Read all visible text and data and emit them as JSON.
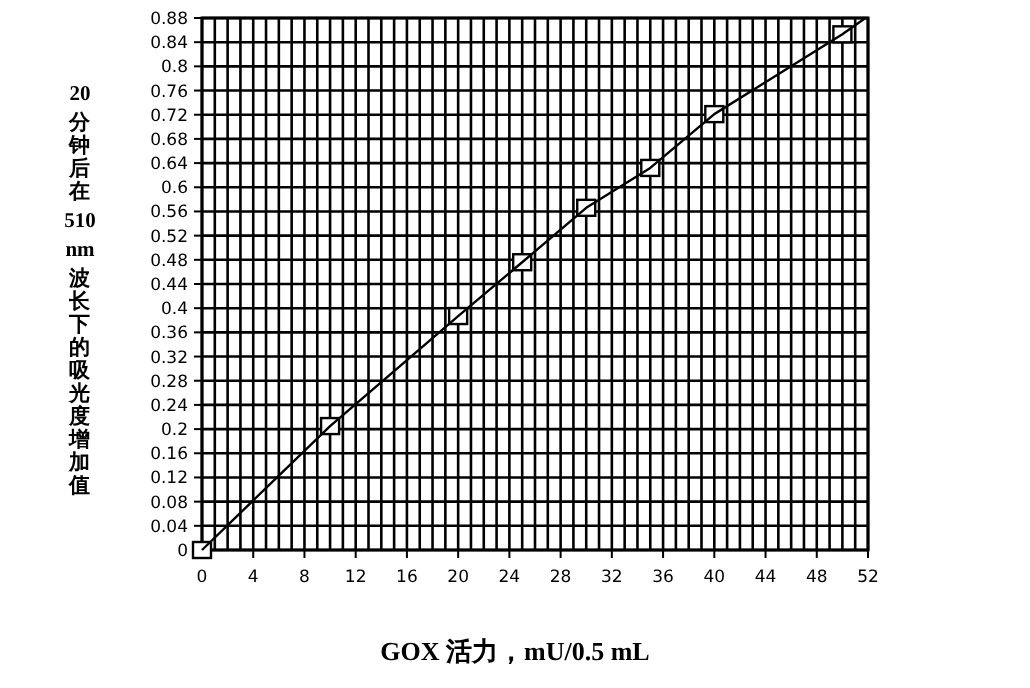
{
  "chart_data": {
    "type": "scatter",
    "xlabel": "GOX 活力，mU/0.5 mL",
    "ylabel": "20 分钟后在 510 nm 波长下的吸光度增加值",
    "x": [
      0,
      10,
      20,
      25,
      30,
      35,
      40,
      50
    ],
    "series": [
      {
        "color": "#000000",
        "marker": "square",
        "values": [
          0,
          0.205,
          0.387,
          0.476,
          0.566,
          0.632,
          0.721,
          0.853
        ]
      },
      {
        "type": "line",
        "color": "#000000",
        "marker": "none",
        "line_style": "solid",
        "x": [
          0,
          10,
          20,
          25,
          30,
          35,
          40,
          50,
          51.8
        ],
        "values": [
          0,
          0.205,
          0.387,
          0.476,
          0.566,
          0.632,
          0.721,
          0.853,
          0.88
        ]
      }
    ],
    "xlim": [
      0,
      52
    ],
    "xticks": [
      0,
      4,
      8,
      12,
      16,
      20,
      24,
      28,
      32,
      36,
      40,
      44,
      48,
      52
    ],
    "ylim": [
      0,
      0.88
    ],
    "yticks": [
      0,
      0.04,
      0.08,
      0.12,
      0.16,
      0.2,
      0.24,
      0.28,
      0.32,
      0.36,
      0.4,
      0.44,
      0.48,
      0.52,
      0.56,
      0.6,
      0.64,
      0.68,
      0.72,
      0.76,
      0.8,
      0.84,
      0.88
    ],
    "grid": true
  }
}
